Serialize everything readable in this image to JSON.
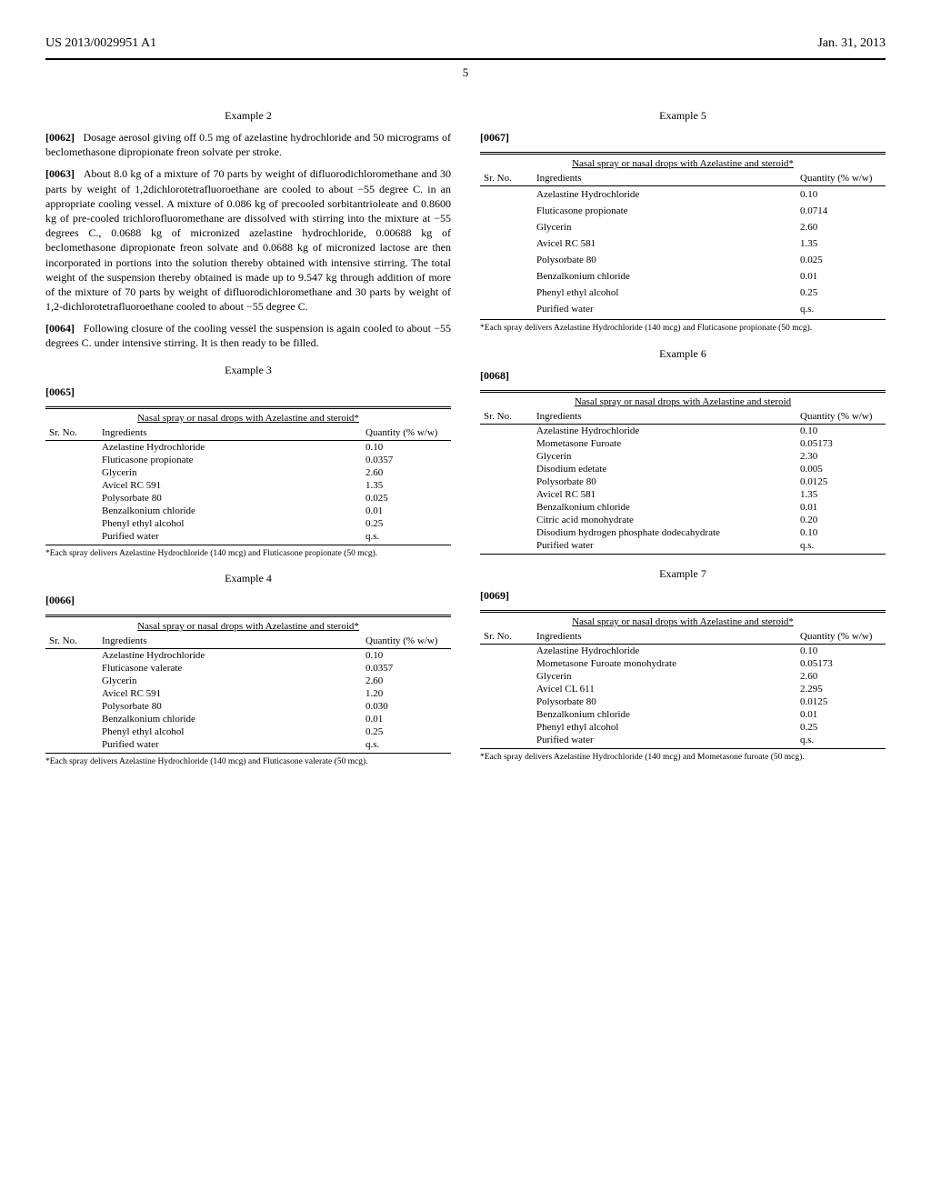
{
  "header": {
    "left": "US 2013/0029951 A1",
    "right": "Jan. 31, 2013",
    "page": "5"
  },
  "col1": {
    "ex2": {
      "title": "Example 2",
      "p62_num": "[0062]",
      "p62": "Dosage aerosol giving off 0.5 mg of azelastine hydrochloride and 50 micrograms of beclomethasone dipropionate freon solvate per stroke.",
      "p63_num": "[0063]",
      "p63": "About 8.0 kg of a mixture of 70 parts by weight of difluorodichloromethane and 30 parts by weight of 1,2dichlorotetrafluoroethane are cooled to about −55 degree C. in an appropriate cooling vessel. A mixture of 0.086 kg of precooled sorbitantrioleate and 0.8600 kg of pre-cooled trichlorofluoromethane are dissolved with stirring into the mixture at −55 degrees C., 0.0688 kg of micronized azelastine hydrochloride, 0.00688 kg of beclomethasone dipropionate freon solvate and 0.0688 kg of micronized lactose are then incorporated in portions into the solution thereby obtained with intensive stirring. The total weight of the suspension thereby obtained is made up to 9.547 kg through addition of more of the mixture of 70 parts by weight of difluorodichloromethane and 30 parts by weight of 1,2-dichlorotetrafluoroethane cooled to about −55 degree C.",
      "p64_num": "[0064]",
      "p64": "Following closure of the cooling vessel the suspension is again cooled to about −55 degrees C. under intensive stirring. It is then ready to be filled."
    },
    "ex3": {
      "title": "Example 3",
      "p65_num": "[0065]",
      "caption": "Nasal spray or nasal drops with Azelastine and steroid*",
      "h_sr": "Sr. No.",
      "h_ing": "Ingredients",
      "h_qty": "Quantity (% w/w)",
      "rows": [
        {
          "ing": "Azelastine Hydrochloride",
          "qty": "0.10"
        },
        {
          "ing": "Fluticasone propionate",
          "qty": "0.0357"
        },
        {
          "ing": "Glycerin",
          "qty": "2.60"
        },
        {
          "ing": "Avicel RC 591",
          "qty": "1.35"
        },
        {
          "ing": "Polysorbate 80",
          "qty": "0.025"
        },
        {
          "ing": "Benzalkonium chloride",
          "qty": "0.01"
        },
        {
          "ing": "Phenyl ethyl alcohol",
          "qty": "0.25"
        },
        {
          "ing": "Purified water",
          "qty": "q.s."
        }
      ],
      "footnote": "*Each spray delivers Azelastine Hydrochloride (140 mcg) and Fluticasone propionate (50 mcg)."
    },
    "ex4": {
      "title": "Example 4",
      "p66_num": "[0066]",
      "caption": "Nasal spray or nasal drops with Azelastine and steroid*",
      "h_sr": "Sr. No.",
      "h_ing": "Ingredients",
      "h_qty": "Quantity (% w/w)",
      "rows": [
        {
          "ing": "Azelastine Hydrochloride",
          "qty": "0.10"
        },
        {
          "ing": "Fluticasone valerate",
          "qty": "0.0357"
        },
        {
          "ing": "Glycerin",
          "qty": "2.60"
        },
        {
          "ing": "Avicel RC 591",
          "qty": "1.20"
        },
        {
          "ing": "Polysorbate 80",
          "qty": "0.030"
        },
        {
          "ing": "Benzalkonium chloride",
          "qty": "0.01"
        },
        {
          "ing": "Phenyl ethyl alcohol",
          "qty": "0.25"
        },
        {
          "ing": "Purified water",
          "qty": "q.s."
        }
      ],
      "footnote": "*Each spray delivers Azelastine Hydrochloride (140 mcg) and Fluticasone valerate (50 mcg)."
    }
  },
  "col2": {
    "ex5": {
      "title": "Example 5",
      "p67_num": "[0067]",
      "caption": "Nasal spray or nasal drops with Azelastine and steroid*",
      "h_sr": "Sr. No.",
      "h_ing": "Ingredients",
      "h_qty": "Quantity (% w/w)",
      "rows": [
        {
          "ing": "Azelastine Hydrochloride",
          "qty": "0.10"
        },
        {
          "ing": "Fluticasone propionate",
          "qty": "0.0714"
        },
        {
          "ing": "Glycerin",
          "qty": "2.60"
        },
        {
          "ing": "Avicel RC 581",
          "qty": "1.35"
        },
        {
          "ing": "Polysorbate 80",
          "qty": "0.025"
        },
        {
          "ing": "Benzalkonium chloride",
          "qty": "0.01"
        },
        {
          "ing": "Phenyl ethyl alcohol",
          "qty": "0.25"
        },
        {
          "ing": "Purified water",
          "qty": "q.s."
        }
      ],
      "footnote": "*Each spray delivers Azelastine Hydrochloride (140 mcg) and Fluticasone propionate (50 mcg)."
    },
    "ex6": {
      "title": "Example 6",
      "p68_num": "[0068]",
      "caption": "Nasal spray or nasal drops with Azelastine and steroid",
      "h_sr": "Sr. No.",
      "h_ing": "Ingredients",
      "h_qty": "Quantity (% w/w)",
      "rows": [
        {
          "ing": "Azelastine Hydrochloride",
          "qty": "0.10"
        },
        {
          "ing": "Mometasone Furoate",
          "qty": "0.05173"
        },
        {
          "ing": "Glycerin",
          "qty": "2.30"
        },
        {
          "ing": "Disodium edetate",
          "qty": "0.005"
        },
        {
          "ing": "Polysorbate 80",
          "qty": "0.0125"
        },
        {
          "ing": "Avicel RC 581",
          "qty": "1.35"
        },
        {
          "ing": "Benzalkonium chloride",
          "qty": "0.01"
        },
        {
          "ing": "Citric acid monohydrate",
          "qty": "0.20"
        },
        {
          "ing": "Disodium hydrogen phosphate dodecahydrate",
          "qty": "0.10"
        },
        {
          "ing": "Purified water",
          "qty": "q.s."
        }
      ]
    },
    "ex7": {
      "title": "Example 7",
      "p69_num": "[0069]",
      "caption": "Nasal spray or nasal drops with Azelastine and steroid*",
      "h_sr": "Sr. No.",
      "h_ing": "Ingredients",
      "h_qty": "Quantity (% w/w)",
      "rows": [
        {
          "ing": "Azelastine Hydrochloride",
          "qty": "0.10"
        },
        {
          "ing": "Mometasone Furoate monohydrate",
          "qty": "0.05173"
        },
        {
          "ing": "Glycerin",
          "qty": "2.60"
        },
        {
          "ing": "Avicel CL 611",
          "qty": "2.295"
        },
        {
          "ing": "Polysorbate 80",
          "qty": "0.0125"
        },
        {
          "ing": "Benzalkonium chloride",
          "qty": "0.01"
        },
        {
          "ing": "Phenyl ethyl alcohol",
          "qty": "0.25"
        },
        {
          "ing": "Purified water",
          "qty": "q.s."
        }
      ],
      "footnote": "*Each spray delivers Azelastine Hydrochloride (140 mcg) and Mometasone furoate (50 mcg)."
    }
  }
}
